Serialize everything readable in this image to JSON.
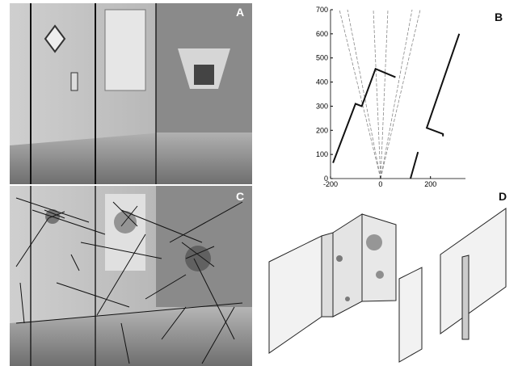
{
  "panels": {
    "a": {
      "label": "A"
    },
    "b": {
      "label": "B"
    },
    "c": {
      "label": "C"
    },
    "d": {
      "label": "D"
    }
  },
  "chart_data": {
    "type": "line",
    "xlim": [
      -200,
      340
    ],
    "ylim": [
      0,
      700
    ],
    "xticks": [
      -200,
      0,
      200
    ],
    "yticks": [
      0,
      100,
      200,
      300,
      400,
      500,
      600,
      700
    ],
    "series": [
      {
        "color": "#111111",
        "x": [
          -190,
          -100,
          -75,
          -20,
          60
        ],
        "y": [
          65,
          310,
          300,
          455,
          420
        ]
      },
      {
        "color": "#111111",
        "x": [
          120,
          150,
          null,
          250,
          250,
          185,
          315
        ],
        "y": [
          0,
          110,
          null,
          175,
          185,
          210,
          600
        ]
      }
    ]
  }
}
